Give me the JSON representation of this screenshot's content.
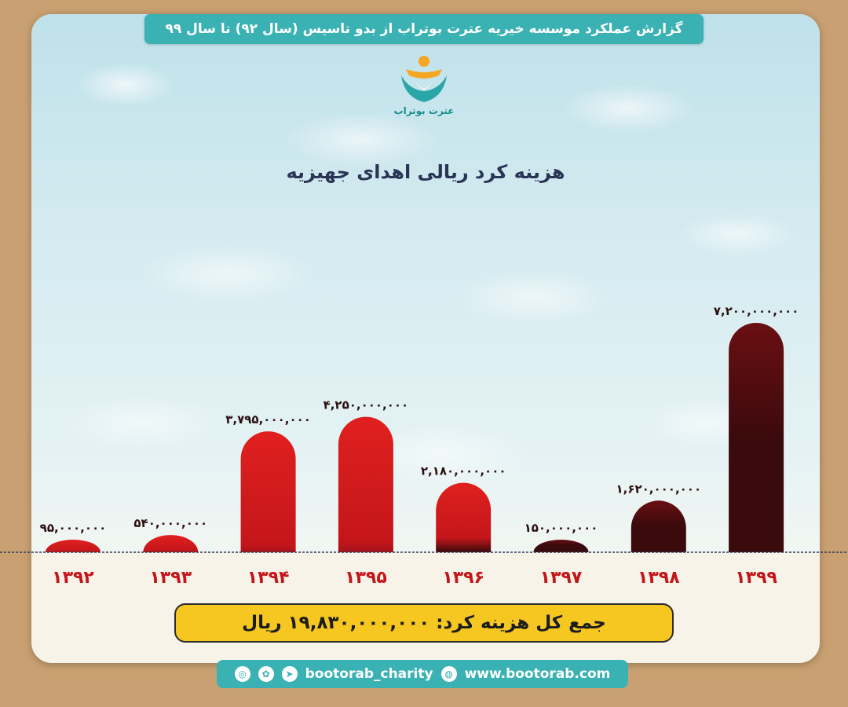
{
  "header": {
    "banner": "گزارش عملکرد موسسه خیریه عترت بوتراب از بدو تاسیس (سال ۹۲) تا سال ۹۹"
  },
  "logo": {
    "text": "عترت بوتراب"
  },
  "footer": {
    "social_handle": "bootorab_charity",
    "website": "www.bootorab.com",
    "icons": [
      "instagram-icon",
      "aparat-icon",
      "telegram-icon",
      "globe-icon"
    ]
  },
  "total": {
    "text": "جمع کل هزینه کرد:  ۱۹,۸۳۰,۰۰۰,۰۰۰  ریال"
  },
  "colors": {
    "bar_top": "#e0201f",
    "bar_dark": "#3a0a0c",
    "accent": "#3ab2b3",
    "total_bg": "#f6c621"
  },
  "chart_data": {
    "type": "bar",
    "title": "هزینه کرد ریالی اهدای جهیزیه",
    "categories": [
      "۱۳۹۲",
      "۱۳۹۳",
      "۱۳۹۴",
      "۱۳۹۵",
      "۱۳۹۶",
      "۱۳۹۷",
      "۱۳۹۸",
      "۱۳۹۹"
    ],
    "values": [
      95000000,
      540000000,
      3795000000,
      4250000000,
      2180000000,
      150000000,
      1620000000,
      7200000000
    ],
    "value_labels": [
      "۹۵,۰۰۰,۰۰۰",
      "۵۴۰,۰۰۰,۰۰۰",
      "۳,۷۹۵,۰۰۰,۰۰۰",
      "۴,۲۵۰,۰۰۰,۰۰۰",
      "۲,۱۸۰,۰۰۰,۰۰۰",
      "۱۵۰,۰۰۰,۰۰۰",
      "۱,۶۲۰,۰۰۰,۰۰۰",
      "۷,۲۰۰,۰۰۰,۰۰۰"
    ],
    "dark_shade": [
      0.1,
      0.15,
      0.1,
      0.15,
      0.35,
      0.9,
      0.85,
      0.8
    ],
    "grid": false
  }
}
